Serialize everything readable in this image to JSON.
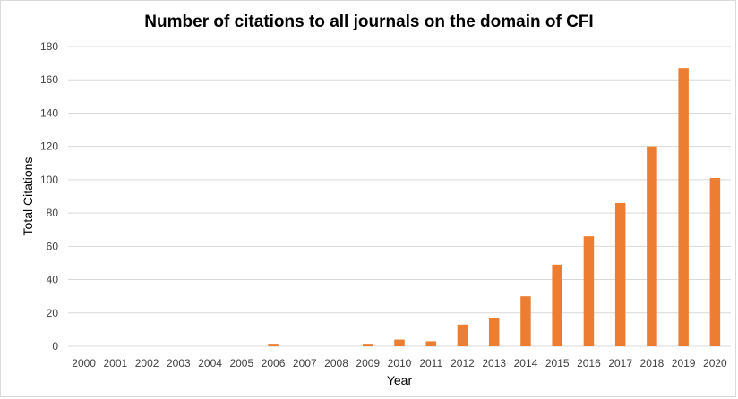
{
  "chart_data": {
    "type": "bar",
    "title": "Number of citations to all journals on the domain of CFI",
    "xlabel": "Year",
    "ylabel": "Total Citations",
    "categories": [
      "2000",
      "2001",
      "2002",
      "2003",
      "2004",
      "2005",
      "2006",
      "2007",
      "2008",
      "2009",
      "2010",
      "2011",
      "2012",
      "2013",
      "2014",
      "2015",
      "2016",
      "2017",
      "2018",
      "2019",
      "2020"
    ],
    "values": [
      0,
      0,
      0,
      0,
      0,
      0,
      1,
      0,
      0,
      1,
      4,
      3,
      13,
      17,
      30,
      49,
      66,
      86,
      120,
      167,
      101
    ],
    "ylim": [
      0,
      180
    ],
    "yticks": [
      "0",
      "20",
      "40",
      "60",
      "80",
      "100",
      "120",
      "140",
      "160",
      "180"
    ],
    "grid": true,
    "legend": "none",
    "bar_color": "#ED7D31",
    "grid_color": "#d9d9d9"
  }
}
